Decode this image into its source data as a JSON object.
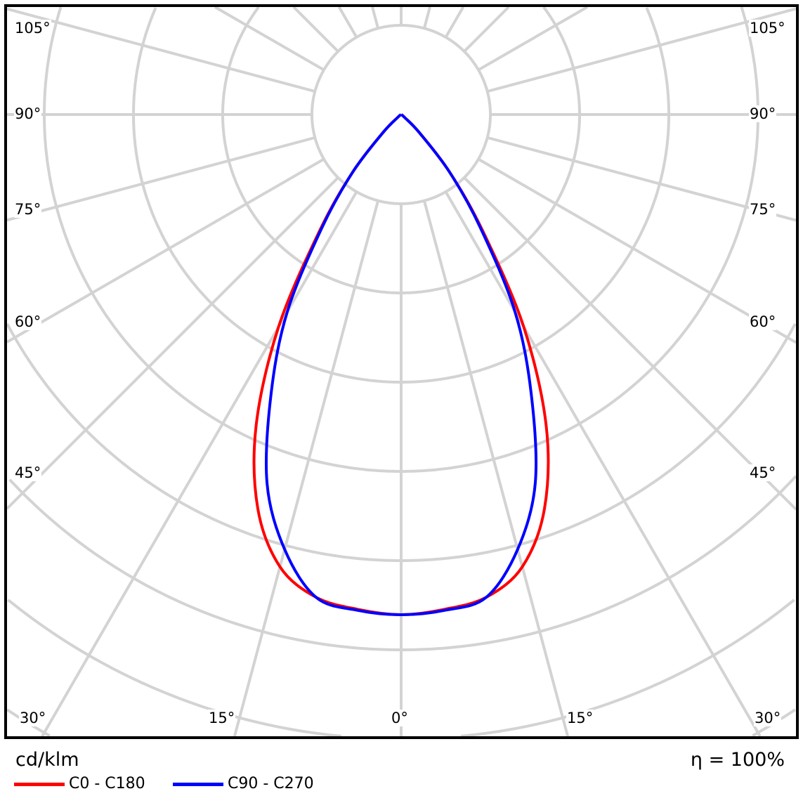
{
  "chart_data": {
    "type": "polar-line",
    "unit_label": "cd/klm",
    "efficiency_label": "η = 100%",
    "angle_labels": {
      "left": [
        "105°",
        "90°",
        "75°",
        "60°",
        "45°"
      ],
      "right": [
        "105°",
        "90°",
        "75°",
        "60°",
        "45°"
      ],
      "bottom": [
        "30°",
        "15°",
        "0°",
        "15°",
        "30°"
      ]
    },
    "gamma_deg": [
      0,
      5,
      10,
      15,
      20,
      25,
      30,
      35,
      40,
      45,
      50,
      55
    ],
    "series": [
      {
        "name": "C0 - C180",
        "color": "#ff0000",
        "values": [
          1.0,
          0.993,
          0.98,
          0.936,
          0.838,
          0.686,
          0.49,
          0.285,
          0.152,
          0.053,
          0.009,
          0
        ]
      },
      {
        "name": "C90 - C270",
        "color": "#0000ff",
        "values": [
          1.0,
          0.995,
          0.98,
          0.9,
          0.784,
          0.615,
          0.455,
          0.276,
          0.152,
          0.053,
          0.009,
          0
        ]
      }
    ],
    "grid": true,
    "legend_position": "bottom-left"
  }
}
